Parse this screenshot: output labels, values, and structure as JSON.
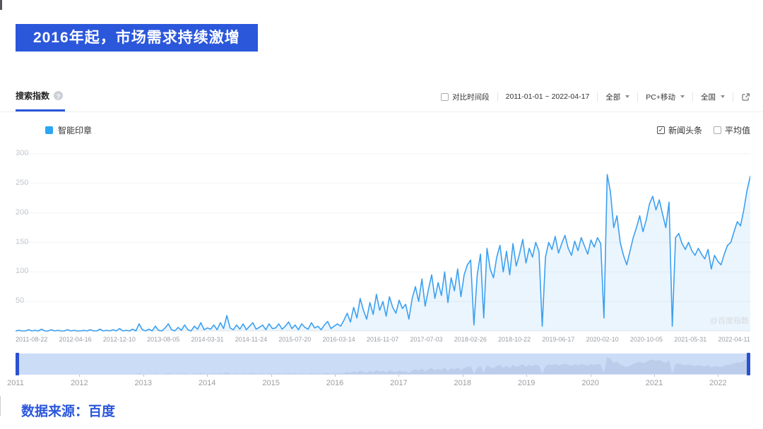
{
  "colors": {
    "accent": "#2B57DB",
    "line": "#3CA0F0",
    "area_fill": "rgba(60,160,240,0.10)",
    "legend_square": "#2AA7F2",
    "slider_bar": "#CBDCF7",
    "slider_handle": "#2B50D0"
  },
  "banner": {
    "title": "2016年起，市场需求持续激增"
  },
  "header": {
    "tab": "搜索指数",
    "compare_label": "对比时间段",
    "date_range": "2011-01-01 ~ 2022-04-17",
    "filters": [
      {
        "label": "全部"
      },
      {
        "label": "PC+移动"
      },
      {
        "label": "全国"
      }
    ]
  },
  "legend": {
    "series_label": "智能印章",
    "checkboxes": [
      {
        "label": "新闻头条",
        "checked": true
      },
      {
        "label": "平均值",
        "checked": false
      }
    ]
  },
  "watermark": "@百度指数",
  "source": "数据来源：百度",
  "slider": {
    "years": [
      "2011",
      "2012",
      "2013",
      "2014",
      "2015",
      "2016",
      "2017",
      "2018",
      "2019",
      "2020",
      "2021",
      "2022"
    ]
  },
  "chart_data": {
    "type": "area",
    "title": "搜索指数",
    "series_name": "智能印章",
    "x_range": [
      "2011-01-01",
      "2022-04-17"
    ],
    "x_tick_labels": [
      "2011-08-22",
      "2012-04-16",
      "2012-12-10",
      "2013-08-05",
      "2014-03-31",
      "2014-11-24",
      "2015-07-20",
      "2016-03-14",
      "2016-11-07",
      "2017-07-03",
      "2018-02-26",
      "2018-10-22",
      "2019-06-17",
      "2020-02-10",
      "2020-10-05",
      "2021-05-31",
      "2022-04-11"
    ],
    "y_ticks": [
      0,
      50,
      100,
      150,
      200,
      250,
      300
    ],
    "ylim": [
      0,
      300
    ],
    "grid": true,
    "legend_position": "top-left",
    "values": [
      0,
      1,
      0,
      0,
      2,
      0,
      1,
      0,
      3,
      0,
      0,
      2,
      0,
      1,
      0,
      0,
      2,
      0,
      1,
      0,
      0,
      1,
      0,
      2,
      0,
      0,
      3,
      0,
      1,
      0,
      2,
      0,
      4,
      0,
      1,
      0,
      3,
      0,
      12,
      2,
      0,
      3,
      0,
      8,
      1,
      0,
      5,
      12,
      2,
      0,
      6,
      1,
      10,
      2,
      0,
      8,
      3,
      14,
      2,
      5,
      3,
      10,
      2,
      14,
      4,
      26,
      5,
      2,
      10,
      3,
      12,
      2,
      8,
      14,
      3,
      6,
      10,
      2,
      12,
      4,
      5,
      12,
      3,
      8,
      15,
      4,
      10,
      2,
      12,
      6,
      3,
      14,
      5,
      8,
      2,
      10,
      16,
      4,
      8,
      12,
      8,
      18,
      30,
      15,
      40,
      22,
      55,
      35,
      20,
      48,
      28,
      62,
      35,
      50,
      25,
      58,
      40,
      30,
      52,
      38,
      45,
      20,
      55,
      75,
      50,
      88,
      42,
      70,
      95,
      55,
      82,
      60,
      100,
      48,
      90,
      68,
      105,
      58,
      95,
      112,
      120,
      10,
      95,
      130,
      22,
      140,
      105,
      90,
      125,
      145,
      100,
      135,
      95,
      148,
      110,
      130,
      155,
      115,
      140,
      125,
      150,
      135,
      8,
      125,
      150,
      138,
      160,
      132,
      148,
      162,
      140,
      128,
      152,
      136,
      158,
      144,
      130,
      154,
      142,
      158,
      148,
      22,
      265,
      235,
      175,
      195,
      150,
      128,
      112,
      135,
      158,
      175,
      195,
      168,
      188,
      215,
      228,
      205,
      222,
      198,
      175,
      218,
      8,
      158,
      165,
      148,
      138,
      150,
      136,
      128,
      140,
      130,
      122,
      138,
      105,
      128,
      118,
      112,
      130,
      145,
      150,
      168,
      185,
      178,
      205,
      238,
      262
    ]
  }
}
